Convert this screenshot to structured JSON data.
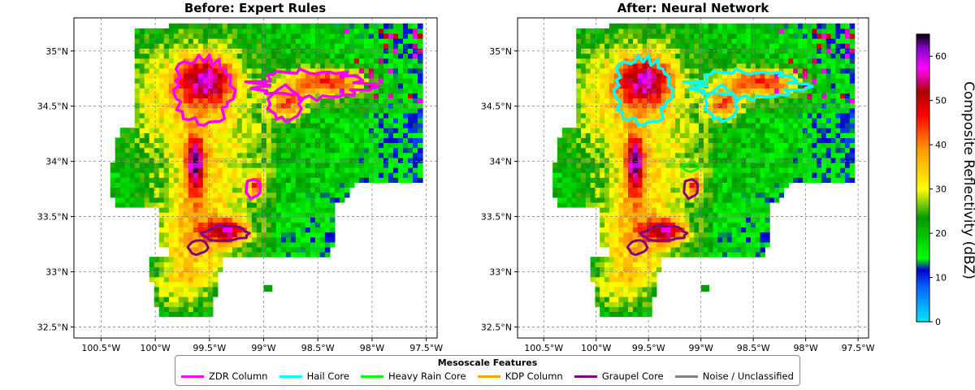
{
  "chart_data": [
    {
      "type": "heatmap",
      "title": "Before: Expert Rules",
      "xlim": [
        -100.75,
        -97.4
      ],
      "ylim": [
        32.4,
        35.3
      ],
      "x_ticks": [
        "100.5°W",
        "100°W",
        "99.5°W",
        "99°W",
        "98.5°W",
        "98°W",
        "97.5°W"
      ],
      "x_tick_values": [
        -100.5,
        -100.0,
        -99.5,
        -99.0,
        -98.5,
        -98.0,
        -97.5
      ],
      "y_ticks": [
        "32.5°N",
        "33°N",
        "33.5°N",
        "34°N",
        "34.5°N",
        "35°N"
      ],
      "y_tick_values": [
        32.5,
        33.0,
        33.5,
        34.0,
        34.5,
        35.0
      ],
      "grid": true,
      "overlay_features": [
        {
          "feature": "ZDR Column",
          "regions": [
            [
              -99.55,
              34.65
            ],
            [
              -98.6,
              34.65
            ],
            [
              -99.1,
              33.75
            ]
          ]
        },
        {
          "feature": "Graupel Core",
          "regions": [
            [
              -99.4,
              33.3
            ],
            [
              -99.6,
              33.2
            ]
          ]
        }
      ]
    },
    {
      "type": "heatmap",
      "title": "After: Neural Network",
      "xlim": [
        -100.75,
        -97.4
      ],
      "ylim": [
        32.4,
        35.3
      ],
      "x_ticks": [
        "100.5°W",
        "100°W",
        "99.5°W",
        "99°W",
        "98.5°W",
        "98°W",
        "97.5°W"
      ],
      "x_tick_values": [
        -100.5,
        -100.0,
        -99.5,
        -99.0,
        -98.5,
        -98.0,
        -97.5
      ],
      "y_ticks": [
        "32.5°N",
        "33°N",
        "33.5°N",
        "34°N",
        "34.5°N",
        "35°N"
      ],
      "y_tick_values": [
        32.5,
        33.0,
        33.5,
        34.0,
        34.5,
        35.0
      ],
      "grid": true,
      "overlay_features": [
        {
          "feature": "Hail Core",
          "regions": [
            [
              -99.55,
              34.65
            ],
            [
              -98.6,
              34.65
            ]
          ]
        },
        {
          "feature": "Heavy Rain Core",
          "regions": [
            [
              -99.1,
              33.95
            ]
          ]
        },
        {
          "feature": "Graupel Core",
          "regions": [
            [
              -99.4,
              33.3
            ],
            [
              -99.6,
              33.2
            ],
            [
              -99.1,
              33.75
            ]
          ]
        }
      ]
    }
  ],
  "colorbar": {
    "label": "Composite Reflectivity (dBZ)",
    "range": [
      0,
      65
    ],
    "ticks": [
      "0",
      "10",
      "20",
      "30",
      "40",
      "50",
      "60"
    ],
    "tick_values": [
      0,
      10,
      20,
      30,
      40,
      50,
      60
    ],
    "colors": [
      "#00e5ff",
      "#0033ff",
      "#00ff00",
      "#009900",
      "#ffff00",
      "#ff9900",
      "#ff0000",
      "#990000",
      "#ff00ff",
      "#6600cc",
      "#000000"
    ]
  },
  "legend": {
    "title": "Mesoscale Features",
    "placement": "bottom-center",
    "items": [
      {
        "label": "ZDR Column",
        "color": "#ff00ff"
      },
      {
        "label": "Hail Core",
        "color": "#00ffff"
      },
      {
        "label": "Heavy Rain Core",
        "color": "#00ff00"
      },
      {
        "label": "KDP Column",
        "color": "#ffa500"
      },
      {
        "label": "Graupel Core",
        "color": "#800080"
      },
      {
        "label": "Noise / Unclassified",
        "color": "#808080"
      }
    ]
  }
}
